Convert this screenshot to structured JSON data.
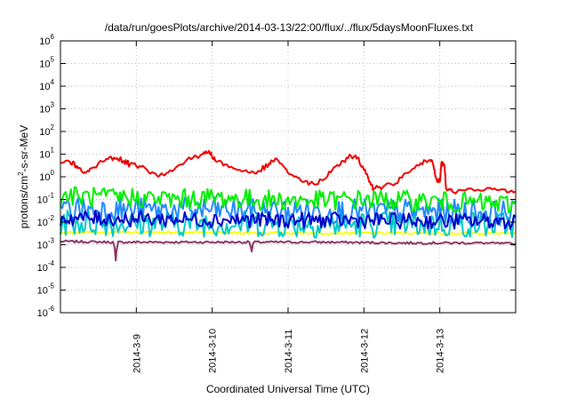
{
  "chart_data": {
    "type": "line",
    "title": "/data/run/goesPlots/archive/2014-03-13/22:00/flux/../flux/5daysMoonFluxes.txt",
    "xlabel": "Coordinated Universal Time (UTC)",
    "ylabel_base": "protons/cm",
    "ylabel_sup": "2",
    "ylabel_rest": "-s-sr-MeV",
    "yscale": "log",
    "ylim": [
      1e-06,
      1000000.0
    ],
    "y_ticks": [
      {
        "base": "10",
        "exp": "-6"
      },
      {
        "base": "10",
        "exp": "-5"
      },
      {
        "base": "10",
        "exp": "-4"
      },
      {
        "base": "10",
        "exp": "-3"
      },
      {
        "base": "10",
        "exp": "-2"
      },
      {
        "base": "10",
        "exp": "-1"
      },
      {
        "base": "10",
        "exp": "0"
      },
      {
        "base": "10",
        "exp": "1"
      },
      {
        "base": "10",
        "exp": "2"
      },
      {
        "base": "10",
        "exp": "3"
      },
      {
        "base": "10",
        "exp": "4"
      },
      {
        "base": "10",
        "exp": "5"
      },
      {
        "base": "10",
        "exp": "6"
      }
    ],
    "xlim": [
      "2014-03-08T00:00",
      "2014-03-14T00:00"
    ],
    "x_ticks": [
      "2014-3-9",
      "2014-3-10",
      "2014-3-11",
      "2014-3-12",
      "2014-3-13"
    ],
    "grid": true,
    "legend": "none",
    "series": [
      {
        "color": "#ee0000",
        "points": [
          [
            "2014-03-08T00:00",
            4.0
          ],
          [
            "2014-03-08T03:00",
            4.5
          ],
          [
            "2014-03-08T05:00",
            3.0
          ],
          [
            "2014-03-08T06:00",
            2.5
          ],
          [
            "2014-03-08T08:00",
            1.5
          ],
          [
            "2014-03-08T10:00",
            2.5
          ],
          [
            "2014-03-08T14:00",
            5.0
          ],
          [
            "2014-03-08T17:00",
            7.0
          ],
          [
            "2014-03-08T20:00",
            5.0
          ],
          [
            "2014-03-08T22:00",
            3.5
          ],
          [
            "2014-03-09T01:00",
            3.0
          ],
          [
            "2014-03-09T04:00",
            1.5
          ],
          [
            "2014-03-09T07:00",
            1.0
          ],
          [
            "2014-03-09T10:00",
            1.5
          ],
          [
            "2014-03-09T14:00",
            3.5
          ],
          [
            "2014-03-09T18:00",
            7.0
          ],
          [
            "2014-03-09T21:00",
            10.0
          ],
          [
            "2014-03-09T23:00",
            14.0
          ],
          [
            "2014-03-10T01:00",
            5.0
          ],
          [
            "2014-03-10T04:00",
            3.5
          ],
          [
            "2014-03-10T08:00",
            2.0
          ],
          [
            "2014-03-10T12:00",
            1.5
          ],
          [
            "2014-03-10T15:00",
            1.8
          ],
          [
            "2014-03-10T18:00",
            4.0
          ],
          [
            "2014-03-10T20:00",
            6.5
          ],
          [
            "2014-03-10T23:00",
            2.5
          ],
          [
            "2014-03-11T02:00",
            1.0
          ],
          [
            "2014-03-11T05:00",
            0.6
          ],
          [
            "2014-03-11T08:00",
            0.5
          ],
          [
            "2014-03-11T11:00",
            0.7
          ],
          [
            "2014-03-11T14:00",
            2.0
          ],
          [
            "2014-03-11T17:00",
            5.0
          ],
          [
            "2014-03-11T20:00",
            8.0
          ],
          [
            "2014-03-11T22:00",
            7.0
          ],
          [
            "2014-03-12T00:00",
            2.0
          ],
          [
            "2014-03-12T02:00",
            0.6
          ],
          [
            "2014-03-12T03:00",
            0.3
          ],
          [
            "2014-03-12T06:00",
            0.35
          ],
          [
            "2014-03-12T10:00",
            0.5
          ],
          [
            "2014-03-12T14:00",
            1.5
          ],
          [
            "2014-03-12T18:00",
            4.0
          ],
          [
            "2014-03-12T21:00",
            5.5
          ],
          [
            "2014-03-12T22:00",
            3.0
          ],
          [
            "2014-03-12T23:00",
            0.8
          ],
          [
            "2014-03-13T00:00",
            0.6
          ],
          [
            "2014-03-13T00:30",
            4.0
          ],
          [
            "2014-03-13T01:30",
            3.0
          ],
          [
            "2014-03-13T02:00",
            0.3
          ],
          [
            "2014-03-13T04:00",
            0.22
          ],
          [
            "2014-03-13T10:00",
            0.3
          ],
          [
            "2014-03-13T16:00",
            0.32
          ],
          [
            "2014-03-13T20:00",
            0.28
          ],
          [
            "2014-03-14T00:00",
            0.22
          ]
        ]
      },
      {
        "color": "#00ee00",
        "points": [
          [
            "2014-03-08T00:00",
            0.15
          ],
          [
            "2014-03-08T12:00",
            0.12
          ],
          [
            "2014-03-09T00:00",
            0.12
          ],
          [
            "2014-03-09T12:00",
            0.1
          ],
          [
            "2014-03-10T00:00",
            0.12
          ],
          [
            "2014-03-10T12:00",
            0.1
          ],
          [
            "2014-03-11T00:00",
            0.09
          ],
          [
            "2014-03-11T12:00",
            0.09
          ],
          [
            "2014-03-12T00:00",
            0.1
          ],
          [
            "2014-03-12T12:00",
            0.09
          ],
          [
            "2014-03-13T00:00",
            0.08
          ],
          [
            "2014-03-13T12:00",
            0.07
          ],
          [
            "2014-03-14T00:00",
            0.06
          ]
        ]
      },
      {
        "color": "#1e88ff",
        "points": [
          [
            "2014-03-08T00:00",
            0.04
          ],
          [
            "2014-03-09T00:00",
            0.035
          ],
          [
            "2014-03-10T00:00",
            0.035
          ],
          [
            "2014-03-11T00:00",
            0.03
          ],
          [
            "2014-03-12T00:00",
            0.03
          ],
          [
            "2014-03-13T00:00",
            0.03
          ],
          [
            "2014-03-14T00:00",
            0.025
          ]
        ]
      },
      {
        "color": "#00c8c8",
        "points": [
          [
            "2014-03-08T00:00",
            0.01
          ],
          [
            "2014-03-09T00:00",
            0.009
          ],
          [
            "2014-03-10T00:00",
            0.009
          ],
          [
            "2014-03-11T00:00",
            0.008
          ],
          [
            "2014-03-12T00:00",
            0.008
          ],
          [
            "2014-03-13T00:00",
            0.008
          ],
          [
            "2014-03-14T00:00",
            0.008
          ]
        ]
      },
      {
        "color": "#0000cc",
        "points": [
          [
            "2014-03-08T00:00",
            0.015
          ],
          [
            "2014-03-09T00:00",
            0.014
          ],
          [
            "2014-03-10T00:00",
            0.013
          ],
          [
            "2014-03-11T00:00",
            0.012
          ],
          [
            "2014-03-12T00:00",
            0.012
          ],
          [
            "2014-03-13T00:00",
            0.011
          ],
          [
            "2014-03-14T00:00",
            0.011
          ]
        ]
      },
      {
        "color": "#ffff00",
        "points": [
          [
            "2014-03-08T00:00",
            0.0035
          ],
          [
            "2014-03-09T00:00",
            0.0035
          ],
          [
            "2014-03-10T00:00",
            0.0034
          ],
          [
            "2014-03-11T00:00",
            0.0033
          ],
          [
            "2014-03-12T00:00",
            0.0033
          ],
          [
            "2014-03-13T00:00",
            0.0032
          ],
          [
            "2014-03-14T00:00",
            0.0032
          ]
        ]
      },
      {
        "color": "#883366",
        "points": [
          [
            "2014-03-08T00:00",
            0.0014
          ],
          [
            "2014-03-08T17:00",
            0.0013
          ],
          [
            "2014-03-08T17:30",
            0.0002
          ],
          [
            "2014-03-08T18:00",
            0.0013
          ],
          [
            "2014-03-09T12:00",
            0.0013
          ],
          [
            "2014-03-10T12:00",
            0.0013
          ],
          [
            "2014-03-10T12:30",
            0.0005
          ],
          [
            "2014-03-10T13:00",
            0.0013
          ],
          [
            "2014-03-11T12:00",
            0.0013
          ],
          [
            "2014-03-12T12:00",
            0.0012
          ],
          [
            "2014-03-13T12:00",
            0.0012
          ],
          [
            "2014-03-14T00:00",
            0.0011
          ]
        ]
      }
    ]
  }
}
